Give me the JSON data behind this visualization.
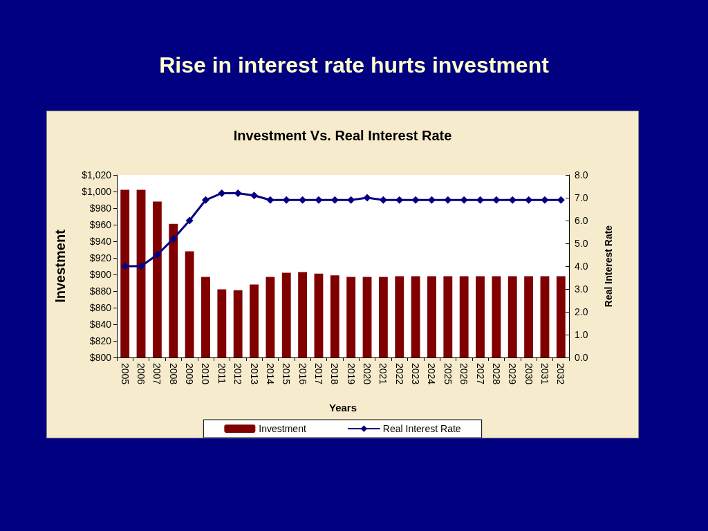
{
  "chart_data": {
    "type": "bar",
    "title": "Rise in interest rate hurts investment",
    "subtitle": "Investment Vs. Real Interest Rate",
    "xlabel": "Years",
    "ylabel": "Investment",
    "y2label": "Real Interest Rate",
    "categories": [
      "2005",
      "2006",
      "2007",
      "2008",
      "2009",
      "2010",
      "2011",
      "2012",
      "2013",
      "2014",
      "2015",
      "2016",
      "2017",
      "2018",
      "2019",
      "2020",
      "2021",
      "2022",
      "2023",
      "2024",
      "2025",
      "2026",
      "2027",
      "2028",
      "2029",
      "2030",
      "2031",
      "2032"
    ],
    "series": [
      {
        "name": "Investment",
        "color": "#800000",
        "values": [
          1002,
          1002,
          988,
          961,
          928,
          897,
          882,
          881,
          888,
          897,
          902,
          903,
          901,
          899,
          897,
          897,
          897,
          898,
          898,
          898,
          898,
          898,
          898,
          898,
          898,
          898,
          898,
          898
        ]
      },
      {
        "name": "Real Interest Rate",
        "type": "line",
        "axis": "y2",
        "color": "#000080",
        "marker": "diamond",
        "values": [
          4.0,
          4.0,
          4.5,
          5.2,
          6.0,
          6.9,
          7.2,
          7.2,
          7.1,
          6.9,
          6.9,
          6.9,
          6.9,
          6.9,
          6.9,
          7.0,
          6.9,
          6.9,
          6.9,
          6.9,
          6.9,
          6.9,
          6.9,
          6.9,
          6.9,
          6.9,
          6.9,
          6.9
        ]
      }
    ],
    "ylim": [
      800,
      1020
    ],
    "yticks": [
      {
        "value": 800,
        "label": "$800"
      },
      {
        "value": 820,
        "label": "$820"
      },
      {
        "value": 840,
        "label": "$840"
      },
      {
        "value": 860,
        "label": "$860"
      },
      {
        "value": 880,
        "label": "$880"
      },
      {
        "value": 900,
        "label": "$900"
      },
      {
        "value": 920,
        "label": "$920"
      },
      {
        "value": 940,
        "label": "$940"
      },
      {
        "value": 960,
        "label": "$960"
      },
      {
        "value": 980,
        "label": "$980"
      },
      {
        "value": 1000,
        "label": "$1,000"
      },
      {
        "value": 1020,
        "label": "$1,020"
      }
    ],
    "y2lim": [
      0,
      8
    ],
    "y2ticks": [
      {
        "value": 0,
        "label": "0.0"
      },
      {
        "value": 1,
        "label": "1.0"
      },
      {
        "value": 2,
        "label": "2.0"
      },
      {
        "value": 3,
        "label": "3.0"
      },
      {
        "value": 4,
        "label": "4.0"
      },
      {
        "value": 5,
        "label": "5.0"
      },
      {
        "value": 6,
        "label": "6.0"
      },
      {
        "value": 7,
        "label": "7.0"
      },
      {
        "value": 8,
        "label": "8.0"
      }
    ],
    "grid": false,
    "legend": "bottom"
  }
}
